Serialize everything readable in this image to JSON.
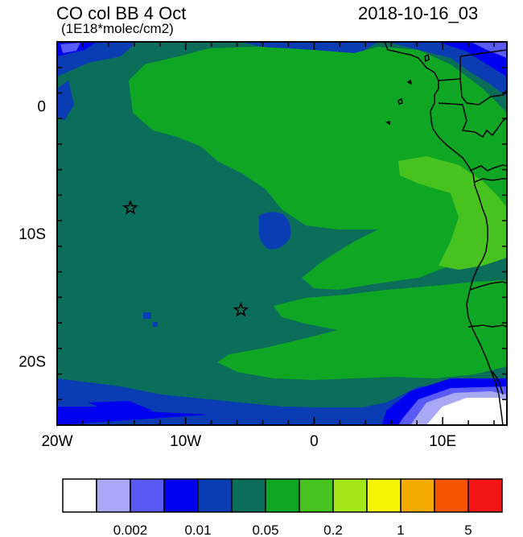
{
  "title_left": "CO col BB 4 Oct",
  "title_units": "(1E18*molec/cm2)",
  "title_right": "2018-10-16_03",
  "map": {
    "lon_range": [
      -20,
      15
    ],
    "lat_range": [
      -25,
      5
    ],
    "x_ticks": [
      {
        "lon": -20,
        "label": "20W"
      },
      {
        "lon": -10,
        "label": "10W"
      },
      {
        "lon": 0,
        "label": "0"
      },
      {
        "lon": 10,
        "label": "10E"
      }
    ],
    "y_ticks": [
      {
        "lat": 0,
        "label": "0"
      },
      {
        "lat": -10,
        "label": "10S"
      },
      {
        "lat": -20,
        "label": "20S"
      }
    ],
    "markers": [
      {
        "name": "st-helena-star",
        "lon": -14.3,
        "lat": -8.0
      },
      {
        "name": "ascension-star",
        "lon": -5.7,
        "lat": -16.0
      }
    ]
  },
  "colorbar": {
    "colors": [
      "#ffffff",
      "#a8a8f5",
      "#5a5af5",
      "#0000f0",
      "#0a3cb4",
      "#0a6e5a",
      "#0fa623",
      "#46c31e",
      "#a5e619",
      "#f5f500",
      "#f5aa00",
      "#f55500",
      "#f51414"
    ],
    "labels": [
      {
        "after_box": 2,
        "text": "0.002"
      },
      {
        "after_box": 4,
        "text": "0.01"
      },
      {
        "after_box": 6,
        "text": "0.05"
      },
      {
        "after_box": 8,
        "text": "0.2"
      },
      {
        "after_box": 10,
        "text": "1"
      },
      {
        "after_box": 12,
        "text": "5"
      }
    ]
  }
}
